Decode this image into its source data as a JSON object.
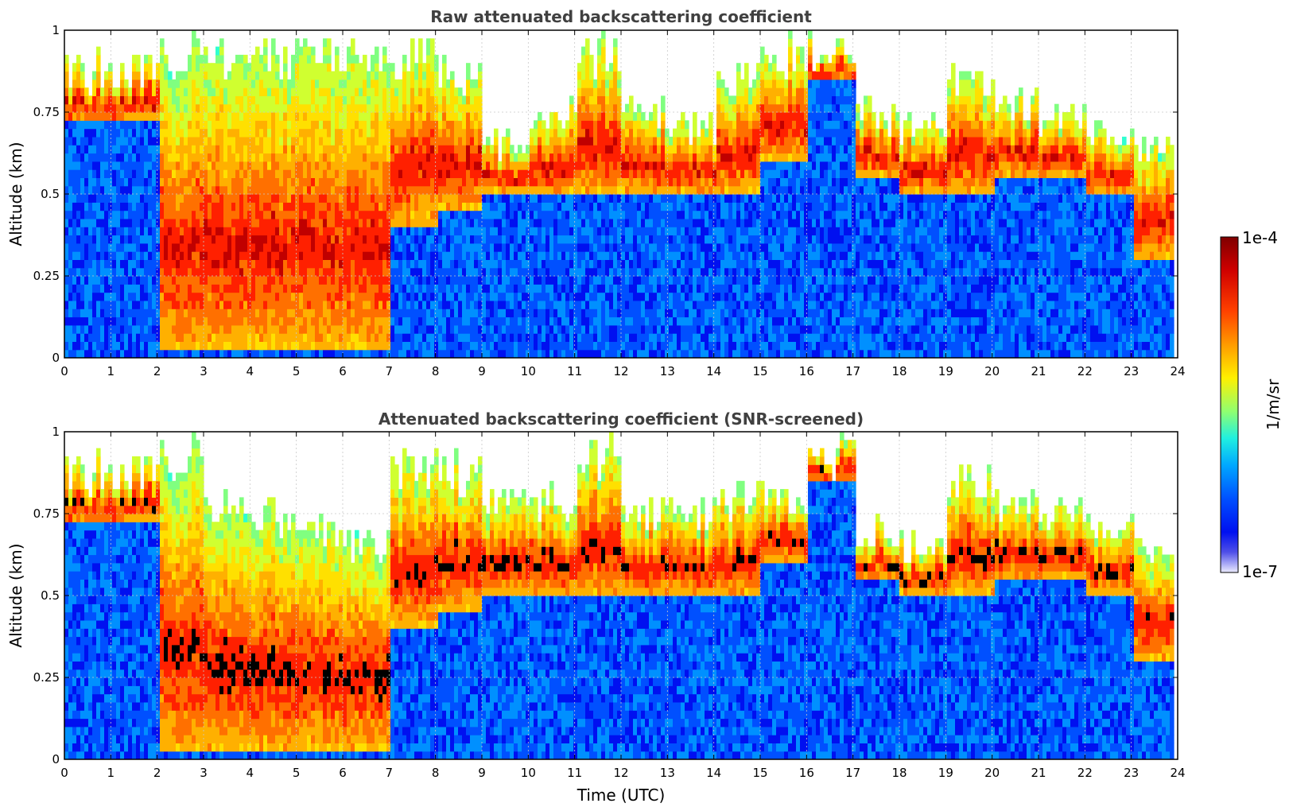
{
  "chart_data": [
    {
      "type": "heatmap",
      "title": "Raw attenuated backscattering coefficient",
      "xlabel": "",
      "ylabel": "Altitude (km)",
      "xlim": [
        0,
        24
      ],
      "ylim": [
        0,
        1
      ],
      "xticks": [
        "0",
        "1",
        "2",
        "3",
        "4",
        "5",
        "6",
        "7",
        "8",
        "9",
        "10",
        "11",
        "12",
        "13",
        "14",
        "15",
        "16",
        "17",
        "18",
        "19",
        "20",
        "21",
        "22",
        "23",
        "24"
      ],
      "yticks": [
        "0",
        "0.25",
        "0.5",
        "0.75",
        "1"
      ],
      "grid": true,
      "log_scale_color": true,
      "cloud_top_km_by_hour": [
        0.95,
        0.95,
        1.0,
        1.0,
        1.0,
        1.0,
        1.0,
        1.0,
        0.95,
        0.7,
        0.8,
        1.0,
        0.8,
        0.75,
        0.9,
        1.0,
        1.0,
        0.8,
        0.75,
        0.9,
        0.85,
        0.8,
        0.75,
        0.7
      ],
      "cloud_base_km_by_hour": [
        0.72,
        0.72,
        0.02,
        0.02,
        0.02,
        0.02,
        0.02,
        0.4,
        0.45,
        0.5,
        0.5,
        0.5,
        0.5,
        0.5,
        0.5,
        0.6,
        0.85,
        0.55,
        0.5,
        0.5,
        0.55,
        0.55,
        0.5,
        0.3
      ]
    },
    {
      "type": "heatmap",
      "title": "Attenuated backscattering coefficient (SNR-screened)",
      "xlabel": "Time (UTC)",
      "ylabel": "Altitude (km)",
      "xlim": [
        0,
        24
      ],
      "ylim": [
        0,
        1
      ],
      "xticks": [
        "0",
        "1",
        "2",
        "3",
        "4",
        "5",
        "6",
        "7",
        "8",
        "9",
        "10",
        "11",
        "12",
        "13",
        "14",
        "15",
        "16",
        "17",
        "18",
        "19",
        "20",
        "21",
        "22",
        "23",
        "24"
      ],
      "yticks": [
        "0",
        "0.25",
        "0.5",
        "0.75",
        "1"
      ],
      "grid": true,
      "log_scale_color": true,
      "cloud_top_km_by_hour": [
        0.95,
        0.95,
        1.0,
        0.85,
        0.8,
        0.75,
        0.7,
        0.95,
        0.95,
        0.85,
        0.85,
        1.0,
        0.8,
        0.8,
        0.85,
        0.85,
        1.0,
        0.75,
        0.7,
        0.9,
        0.85,
        0.8,
        0.75,
        0.7
      ],
      "cloud_base_km_by_hour": [
        0.72,
        0.72,
        0.02,
        0.02,
        0.02,
        0.02,
        0.02,
        0.4,
        0.45,
        0.5,
        0.5,
        0.5,
        0.5,
        0.5,
        0.5,
        0.6,
        0.85,
        0.55,
        0.5,
        0.5,
        0.55,
        0.55,
        0.5,
        0.3
      ]
    }
  ],
  "colorbar": {
    "label": "1/m/sr",
    "max_label": "1e-4",
    "min_label": "1e-7",
    "colors": [
      "#7f0000",
      "#c00000",
      "#ff2000",
      "#ff7000",
      "#ffb000",
      "#ffe000",
      "#d0ff30",
      "#80ff80",
      "#30ffd0",
      "#00d0ff",
      "#0090ff",
      "#0050ff",
      "#0010f0",
      "#2020e0",
      "#8080f0",
      "#e8e8ff"
    ]
  }
}
